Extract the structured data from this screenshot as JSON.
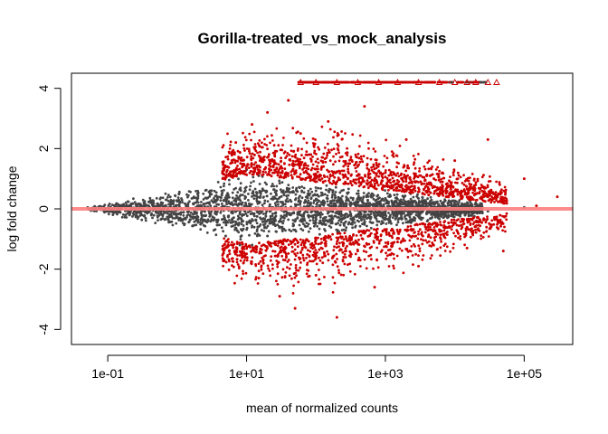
{
  "chart_data": {
    "type": "scatter",
    "title": "Gorilla-treated_vs_mock_analysis",
    "xlabel": "mean of normalized counts",
    "ylabel": "log fold change",
    "x_scale": "log10",
    "xlim": [
      0.03,
      500000
    ],
    "ylim": [
      -4.5,
      4.5
    ],
    "x_ticks": [
      0.1,
      10,
      1000,
      100000
    ],
    "x_tick_labels": [
      "1e-01",
      "1e+01",
      "1e+03",
      "1e+05"
    ],
    "y_ticks": [
      -4,
      -2,
      0,
      2,
      4
    ],
    "y_tick_labels": [
      "-4",
      "-2",
      "0",
      "2",
      "4"
    ],
    "grid": false,
    "reference_line": {
      "y": 0,
      "color": "#ff8080"
    },
    "colors": {
      "non_significant": "#444444",
      "significant": "#cc0000",
      "clipped_marker": "#cc0000"
    },
    "series": [
      {
        "points": [
          [
            0.06,
            0.02
          ],
          [
            0.07,
            -0.03
          ],
          [
            0.08,
            0.01
          ],
          [
            0.1,
            0.03
          ],
          [
            0.12,
            -0.02
          ],
          [
            0.15,
            0.04
          ],
          [
            0.2,
            -0.05
          ],
          [
            0.3,
            0.08
          ],
          [
            0.5,
            -0.1
          ],
          [
            1,
            0.25
          ],
          [
            2,
            -0.45
          ],
          [
            3,
            0.6
          ],
          [
            5,
            -0.9
          ],
          [
            6,
            1.1
          ],
          [
            8,
            -1.2
          ],
          [
            10,
            1.3
          ],
          [
            12,
            -1.2
          ],
          [
            15,
            1.1
          ],
          [
            20,
            -0.9
          ],
          [
            30,
            0.85
          ],
          [
            50,
            -0.7
          ],
          [
            100,
            0.6
          ],
          [
            300,
            -0.45
          ],
          [
            1000,
            0.35
          ],
          [
            3000,
            -0.25
          ],
          [
            10000,
            0.15
          ],
          [
            30000,
            -0.08
          ],
          [
            100000,
            0.05
          ]
        ]
      },
      {
        "points": [
          [
            7,
            2.2
          ],
          [
            9,
            -1.8
          ],
          [
            12,
            2.8
          ],
          [
            15,
            -2.3
          ],
          [
            20,
            3.2
          ],
          [
            25,
            1.6
          ],
          [
            30,
            -2.9
          ],
          [
            40,
            3.6
          ],
          [
            50,
            -3.3
          ],
          [
            60,
            2.5
          ],
          [
            80,
            1.8
          ],
          [
            100,
            -2.2
          ],
          [
            150,
            2.9
          ],
          [
            200,
            -3.6
          ],
          [
            300,
            1.5
          ],
          [
            400,
            -1.4
          ],
          [
            500,
            3.4
          ],
          [
            700,
            -2.6
          ],
          [
            1000,
            1.2
          ],
          [
            1500,
            -1.1
          ],
          [
            2000,
            2.3
          ],
          [
            3000,
            -1.9
          ],
          [
            5000,
            1.0
          ],
          [
            7000,
            -0.9
          ],
          [
            10000,
            1.6
          ],
          [
            15000,
            -1.3
          ],
          [
            20000,
            0.8
          ],
          [
            30000,
            2.3
          ],
          [
            50000,
            -1.4
          ],
          [
            100000,
            1.0
          ],
          [
            150000,
            0.1
          ],
          [
            300000,
            0.4
          ]
        ]
      },
      {
        "points": [
          [
            60,
            4.2
          ],
          [
            100,
            4.2
          ],
          [
            200,
            4.2
          ],
          [
            400,
            4.2
          ],
          [
            800,
            4.2
          ],
          [
            1500,
            4.2
          ],
          [
            3000,
            4.2
          ],
          [
            6000,
            4.2
          ],
          [
            10000,
            4.2
          ],
          [
            15000,
            4.2
          ],
          [
            20000,
            4.2
          ],
          [
            30000,
            4.2
          ],
          [
            40000,
            4.2
          ]
        ]
      }
    ]
  }
}
